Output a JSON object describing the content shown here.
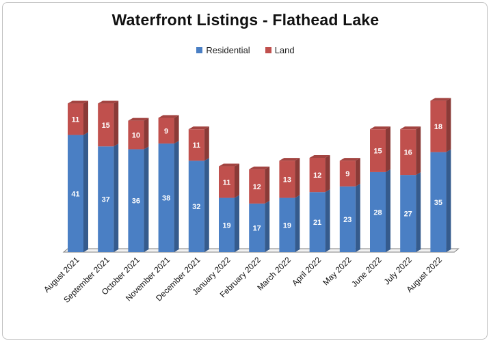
{
  "chart_data": {
    "type": "bar",
    "stacked": true,
    "title": "Waterfront Listings - Flathead Lake",
    "xlabel": "",
    "ylabel": "",
    "ylim": [
      0,
      55
    ],
    "grid": false,
    "legend_position": "top-center",
    "categories": [
      "August 2021",
      "September 2021",
      "October 2021",
      "November 2021",
      "December 2021",
      "January 2022",
      "February 2022",
      "March 2022",
      "April 2022",
      "May 2022",
      "June 2022",
      "July 2022",
      "August 2022"
    ],
    "series": [
      {
        "name": "Residential",
        "color": "#4a7fc4",
        "values": [
          41,
          37,
          36,
          38,
          32,
          19,
          17,
          19,
          21,
          23,
          28,
          27,
          35
        ]
      },
      {
        "name": "Land",
        "color": "#c0504d",
        "values": [
          11,
          15,
          10,
          9,
          11,
          11,
          12,
          13,
          12,
          9,
          15,
          16,
          18
        ]
      }
    ]
  }
}
